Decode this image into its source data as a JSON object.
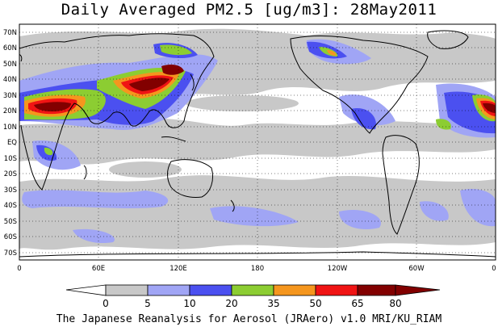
{
  "title": "Daily Averaged PM2.5 [ug/m3]: 28May2011",
  "footer": "The Japanese Reanalysis for Aerosol (JRAero) v1.0 MRI/KU_RIAM",
  "map": {
    "lat_labels": [
      "70N",
      "60N",
      "50N",
      "40N",
      "30N",
      "20N",
      "10N",
      "EQ",
      "10S",
      "20S",
      "30S",
      "40S",
      "50S",
      "60S",
      "70S"
    ],
    "lon_labels": [
      "0",
      "60E",
      "120E",
      "180",
      "120W",
      "60W",
      "0"
    ],
    "grid": "dotted"
  },
  "colorbar": {
    "levels": [
      "0",
      "5",
      "10",
      "20",
      "35",
      "50",
      "65",
      "80"
    ],
    "colors": [
      "#ffffff",
      "#c8c8c8",
      "#a0a5f5",
      "#4b50f0",
      "#8ccd32",
      "#f5961e",
      "#f01414",
      "#820000"
    ]
  }
}
